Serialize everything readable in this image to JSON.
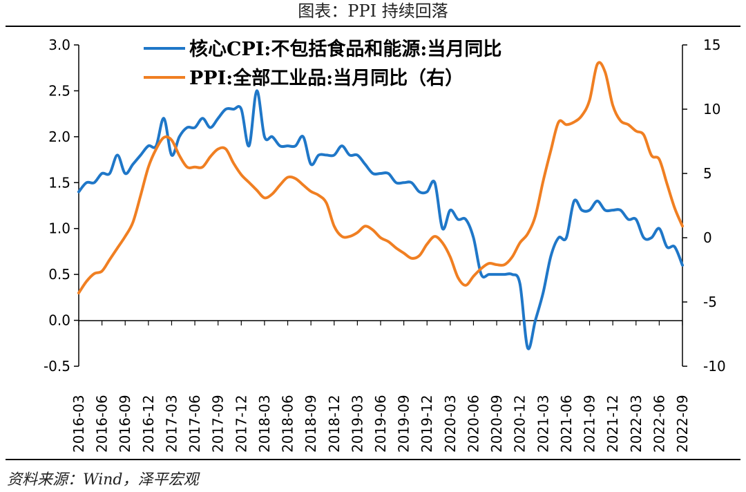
{
  "header": {
    "title": "图表：PPI 持续回落"
  },
  "footer": {
    "source": "资料来源：Wind，泽平宏观"
  },
  "chart_data": {
    "type": "line",
    "x": [
      "2016-03",
      "2016-04",
      "2016-05",
      "2016-06",
      "2016-07",
      "2016-08",
      "2016-09",
      "2016-10",
      "2016-11",
      "2016-12",
      "2017-01",
      "2017-02",
      "2017-03",
      "2017-04",
      "2017-05",
      "2017-06",
      "2017-07",
      "2017-08",
      "2017-09",
      "2017-10",
      "2017-11",
      "2017-12",
      "2018-01",
      "2018-02",
      "2018-03",
      "2018-04",
      "2018-05",
      "2018-06",
      "2018-07",
      "2018-08",
      "2018-09",
      "2018-10",
      "2018-11",
      "2018-12",
      "2019-01",
      "2019-02",
      "2019-03",
      "2019-04",
      "2019-05",
      "2019-06",
      "2019-07",
      "2019-08",
      "2019-09",
      "2019-10",
      "2019-11",
      "2019-12",
      "2020-01",
      "2020-02",
      "2020-03",
      "2020-04",
      "2020-05",
      "2020-06",
      "2020-07",
      "2020-08",
      "2020-09",
      "2020-10",
      "2020-11",
      "2020-12",
      "2021-01",
      "2021-02",
      "2021-03",
      "2021-04",
      "2021-05",
      "2021-06",
      "2021-07",
      "2021-08",
      "2021-09",
      "2021-10",
      "2021-11",
      "2021-12",
      "2022-01",
      "2022-02",
      "2022-03",
      "2022-04",
      "2022-05",
      "2022-06",
      "2022-07",
      "2022-08",
      "2022-09"
    ],
    "x_tick_labels": [
      "2016-03",
      "2016-06",
      "2016-09",
      "2016-12",
      "2017-03",
      "2017-06",
      "2017-09",
      "2017-12",
      "2018-03",
      "2018-06",
      "2018-09",
      "2018-12",
      "2019-03",
      "2019-06",
      "2019-09",
      "2019-12",
      "2020-03",
      "2020-06",
      "2020-09",
      "2020-12",
      "2021-03",
      "2021-06",
      "2021-09",
      "2021-12",
      "2022-03",
      "2022-06",
      "2022-09"
    ],
    "left_axis": {
      "ylim": [
        -0.5,
        3.0
      ],
      "ticks": [
        "3.0",
        "2.5",
        "2.0",
        "1.5",
        "1.0",
        "0.5",
        "0.0",
        "-0.5"
      ],
      "tick_values": [
        3.0,
        2.5,
        2.0,
        1.5,
        1.0,
        0.5,
        0.0,
        -0.5
      ]
    },
    "right_axis": {
      "ylim": [
        -10,
        15
      ],
      "ticks": [
        "15",
        "10",
        "5",
        "0",
        "-5",
        "-10"
      ],
      "tick_values": [
        15,
        10,
        5,
        0,
        -5,
        -10
      ]
    },
    "series": [
      {
        "name": "核心CPI:不包括食品和能源:当月同比",
        "axis": "left",
        "color": "#1f77c8",
        "values": [
          1.4,
          1.5,
          1.5,
          1.6,
          1.6,
          1.8,
          1.6,
          1.7,
          1.8,
          1.9,
          1.9,
          2.2,
          1.8,
          2.0,
          2.1,
          2.1,
          2.2,
          2.1,
          2.2,
          2.3,
          2.3,
          2.3,
          1.9,
          2.5,
          2.0,
          2.0,
          1.9,
          1.9,
          1.9,
          2.0,
          1.7,
          1.8,
          1.8,
          1.8,
          1.9,
          1.8,
          1.8,
          1.7,
          1.6,
          1.6,
          1.6,
          1.5,
          1.5,
          1.5,
          1.4,
          1.4,
          1.5,
          1.0,
          1.2,
          1.1,
          1.1,
          0.9,
          0.5,
          0.5,
          0.5,
          0.5,
          0.5,
          0.4,
          -0.3,
          0.0,
          0.3,
          0.7,
          0.9,
          0.9,
          1.3,
          1.2,
          1.2,
          1.3,
          1.2,
          1.2,
          1.2,
          1.1,
          1.1,
          0.9,
          0.9,
          1.0,
          0.8,
          0.8,
          0.6
        ]
      },
      {
        "name": "PPI:全部工业品:当月同比（右）",
        "axis": "right",
        "color": "#f07f22",
        "values": [
          -4.3,
          -3.4,
          -2.8,
          -2.6,
          -1.7,
          -0.8,
          0.1,
          1.2,
          3.3,
          5.5,
          6.9,
          7.8,
          7.6,
          6.4,
          5.5,
          5.5,
          5.5,
          6.3,
          6.9,
          6.9,
          5.8,
          4.9,
          4.3,
          3.7,
          3.1,
          3.4,
          4.1,
          4.7,
          4.6,
          4.1,
          3.6,
          3.3,
          2.7,
          0.9,
          0.1,
          0.1,
          0.4,
          0.9,
          0.6,
          0.0,
          -0.3,
          -0.8,
          -1.2,
          -1.6,
          -1.4,
          -0.5,
          0.1,
          -0.4,
          -1.5,
          -3.1,
          -3.7,
          -3.0,
          -2.4,
          -2.0,
          -2.1,
          -2.1,
          -1.5,
          -0.4,
          0.3,
          1.7,
          4.4,
          6.8,
          9.0,
          8.8,
          9.0,
          9.5,
          10.7,
          13.5,
          12.9,
          10.3,
          9.1,
          8.8,
          8.3,
          8.0,
          6.4,
          6.1,
          4.2,
          2.3,
          0.9
        ]
      }
    ]
  }
}
